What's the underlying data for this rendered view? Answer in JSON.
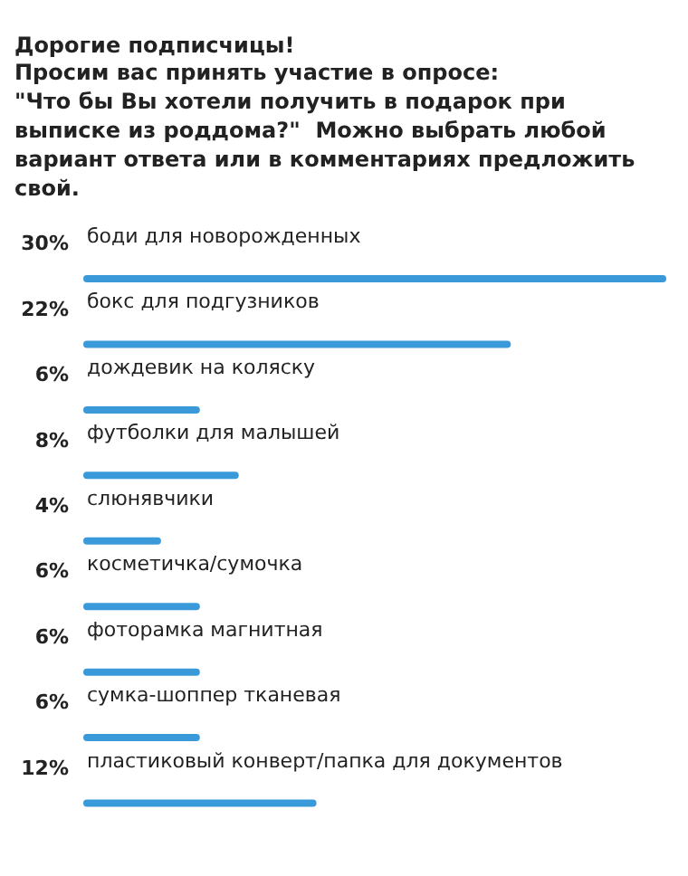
{
  "chart_data": {
    "type": "bar",
    "orientation": "horizontal",
    "title": "Дорогие подписчицы!",
    "subtitle": "Просим вас принять участие в опросе:\n\"Что бы Вы хотели получить в подарок при выписке из роддома?\"  Можно выбрать любой вариант ответа или в комментариях предложить свой.",
    "categories": [
      "боди для новорожденных",
      "бокс для подгузников",
      "дождевик на коляску",
      "футболки для малышей",
      "слюнявчики",
      "косметичка/сумочка",
      "фоторамка магнитная",
      "сумка-шоппер тканевая",
      "пластиковый конверт/папка для документов"
    ],
    "values": [
      30,
      22,
      6,
      8,
      4,
      6,
      6,
      6,
      12
    ],
    "value_labels": [
      "30%",
      "22%",
      "6%",
      "8%",
      "4%",
      "6%",
      "6%",
      "6%",
      "12%"
    ],
    "color": "#3a9ad9"
  }
}
